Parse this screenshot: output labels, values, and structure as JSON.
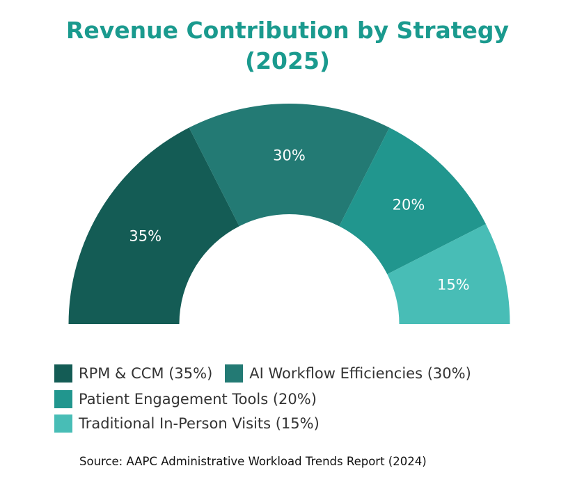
{
  "chart_data": {
    "type": "pie",
    "subtype": "semicircle-donut",
    "title_line1": "Revenue Contribution by Strategy",
    "title_line2": "(2025)",
    "categories": [
      "RPM & CCM",
      "AI Workflow Efficiencies",
      "Patient Engagement Tools",
      "Traditional In-Person Visits"
    ],
    "values": [
      35,
      30,
      20,
      15
    ],
    "data_labels": [
      "35%",
      "30%",
      "20%",
      "15%"
    ],
    "legend_labels": [
      "RPM & CCM (35%)",
      "AI Workflow Efficiencies (30%)",
      "Patient Engagement Tools (20%)",
      "Traditional In-Person Visits (15%)"
    ],
    "colors": [
      "#145c55",
      "#237a74",
      "#21968e",
      "#48bdb6"
    ],
    "legend_position": "bottom",
    "source": "Source: AAPC Administrative Workload Trends Report (2024)"
  },
  "colors": {
    "title": "#1a9a8e",
    "label_text": "#ffffff"
  }
}
